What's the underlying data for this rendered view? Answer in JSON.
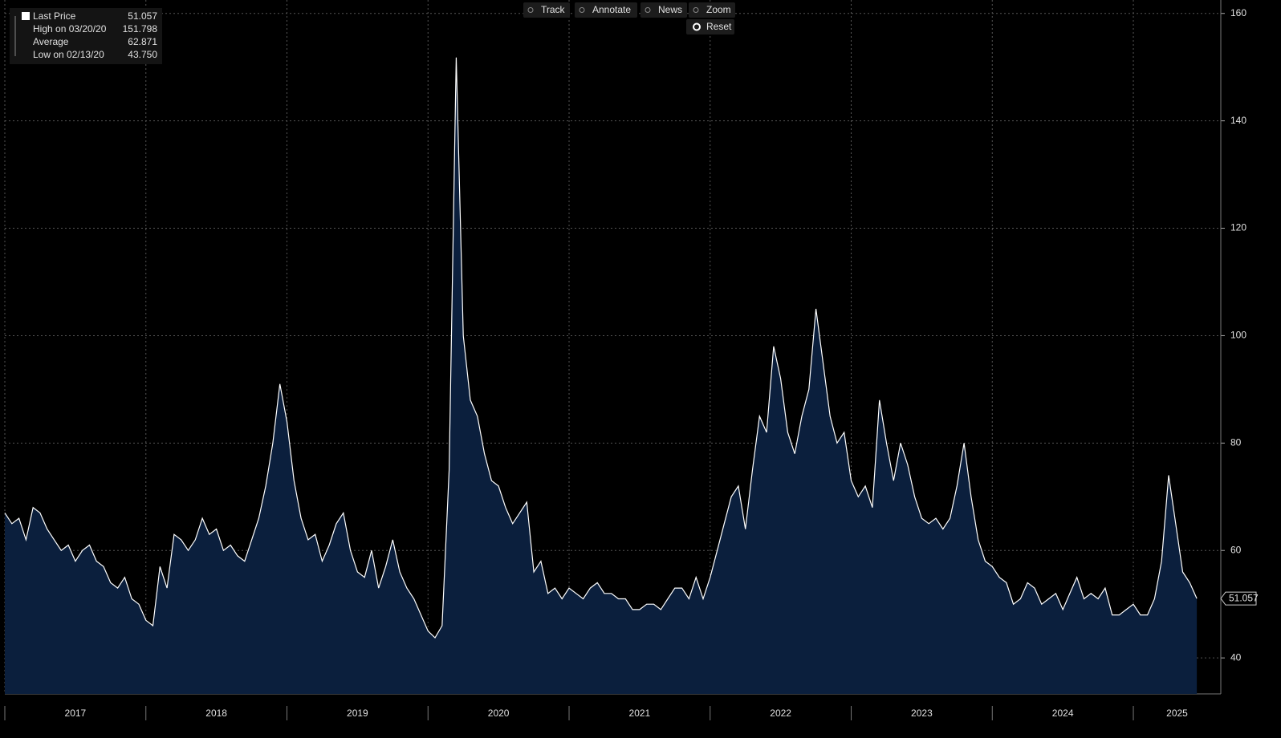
{
  "chart_data": {
    "type": "area",
    "x": [
      2017,
      2017.05,
      2017.1,
      2017.15,
      2017.2,
      2017.25,
      2017.3,
      2017.35,
      2017.4,
      2017.45,
      2017.5,
      2017.55,
      2017.6,
      2017.65,
      2017.7,
      2017.75,
      2017.8,
      2017.85,
      2017.9,
      2017.95,
      2018,
      2018.05,
      2018.1,
      2018.15,
      2018.2,
      2018.25,
      2018.3,
      2018.35,
      2018.4,
      2018.45,
      2018.5,
      2018.55,
      2018.6,
      2018.65,
      2018.7,
      2018.75,
      2018.8,
      2018.85,
      2018.9,
      2018.95,
      2019,
      2019.05,
      2019.1,
      2019.15,
      2019.2,
      2019.25,
      2019.3,
      2019.35,
      2019.4,
      2019.45,
      2019.5,
      2019.55,
      2019.6,
      2019.65,
      2019.7,
      2019.75,
      2019.8,
      2019.85,
      2019.9,
      2019.95,
      2020,
      2020.05,
      2020.1,
      2020.15,
      2020.2,
      2020.25,
      2020.3,
      2020.35,
      2020.4,
      2020.45,
      2020.5,
      2020.55,
      2020.6,
      2020.65,
      2020.7,
      2020.75,
      2020.8,
      2020.85,
      2020.9,
      2020.95,
      2021,
      2021.05,
      2021.1,
      2021.15,
      2021.2,
      2021.25,
      2021.3,
      2021.35,
      2021.4,
      2021.45,
      2021.5,
      2021.55,
      2021.6,
      2021.65,
      2021.7,
      2021.75,
      2021.8,
      2021.85,
      2021.9,
      2021.95,
      2022,
      2022.05,
      2022.1,
      2022.15,
      2022.2,
      2022.25,
      2022.3,
      2022.35,
      2022.4,
      2022.45,
      2022.5,
      2022.55,
      2022.6,
      2022.65,
      2022.7,
      2022.75,
      2022.8,
      2022.85,
      2022.9,
      2022.95,
      2023,
      2023.05,
      2023.1,
      2023.15,
      2023.2,
      2023.25,
      2023.3,
      2023.35,
      2023.4,
      2023.45,
      2023.5,
      2023.55,
      2023.6,
      2023.65,
      2023.7,
      2023.75,
      2023.8,
      2023.85,
      2023.9,
      2023.95,
      2024,
      2024.05,
      2024.1,
      2024.15,
      2024.2,
      2024.25,
      2024.3,
      2024.35,
      2024.4,
      2024.45,
      2024.5,
      2024.55,
      2024.6,
      2024.65,
      2024.7,
      2024.75,
      2024.8,
      2024.85,
      2024.9,
      2024.95,
      2025,
      2025.05,
      2025.1,
      2025.15,
      2025.2,
      2025.25,
      2025.3,
      2025.35,
      2025.4,
      2025.45
    ],
    "series": [
      {
        "name": "Last Price",
        "color": "#ffffff",
        "fill": "#0b1f3d",
        "values": [
          67,
          65,
          66,
          62,
          68,
          67,
          64,
          62,
          60,
          61,
          58,
          60,
          61,
          58,
          57,
          54,
          53,
          55,
          51,
          50,
          47,
          46,
          57,
          53,
          63,
          62,
          60,
          62,
          66,
          63,
          64,
          60,
          61,
          59,
          58,
          62,
          66,
          72,
          80,
          91,
          84,
          73,
          66,
          62,
          63,
          58,
          61,
          65,
          67,
          60,
          56,
          55,
          60,
          53,
          57,
          62,
          56,
          53,
          51,
          48,
          45,
          43.75,
          46,
          75,
          151.798,
          100,
          88,
          85,
          78,
          73,
          72,
          68,
          65,
          67,
          69,
          56,
          58,
          52,
          53,
          51,
          53,
          52,
          51,
          53,
          54,
          52,
          52,
          51,
          51,
          49,
          49,
          50,
          50,
          49,
          51,
          53,
          53,
          51,
          55,
          51,
          55,
          60,
          65,
          70,
          72,
          64,
          75,
          85,
          82,
          98,
          92,
          82,
          78,
          85,
          90,
          105,
          95,
          85,
          80,
          82,
          73,
          70,
          72,
          68,
          88,
          80,
          73,
          80,
          76,
          70,
          66,
          65,
          66,
          64,
          66,
          72,
          80,
          70,
          62,
          58,
          57,
          55,
          54,
          50,
          51,
          54,
          53,
          50,
          51,
          52,
          49,
          52,
          55,
          51,
          52,
          51,
          53,
          48,
          48,
          49,
          50,
          48,
          48,
          51,
          58,
          74,
          65,
          56,
          54,
          51.057
        ]
      }
    ],
    "stats": [
      {
        "label": "Last Price",
        "value": "51.057"
      },
      {
        "label": "High on 03/20/20",
        "value": "151.798"
      },
      {
        "label": "Average",
        "value": "62.871"
      },
      {
        "label": "Low on 02/13/20",
        "value": "43.750"
      }
    ],
    "xlim": [
      2017,
      2025.62
    ],
    "xticks": [
      2017,
      2018,
      2019,
      2020,
      2021,
      2022,
      2023,
      2024,
      2025
    ],
    "ylim": [
      33.3,
      162.5
    ],
    "yticks": [
      40,
      60,
      80,
      100,
      120,
      140,
      160
    ],
    "grid": true
  },
  "toolbar": [
    "Track",
    "Annotate",
    "News",
    "Zoom",
    "Reset"
  ]
}
